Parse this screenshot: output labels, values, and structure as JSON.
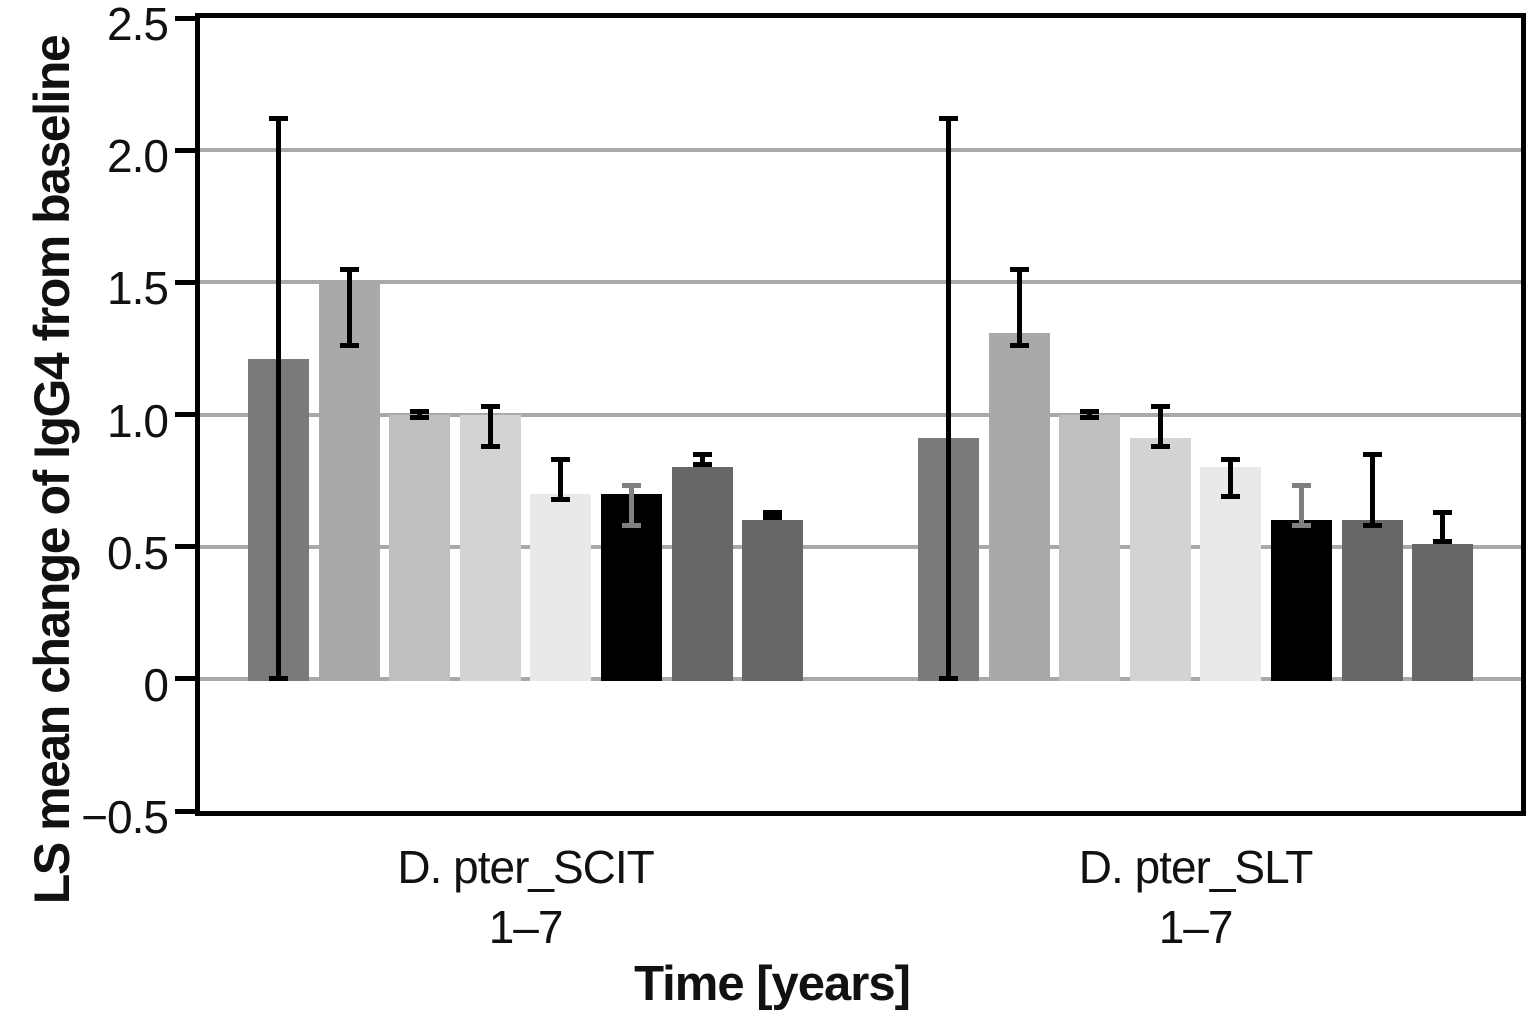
{
  "figure": {
    "y_axis_label": "LS mean change of IgG4 from baseline",
    "x_axis_label": "Time [years]"
  },
  "chart_data": {
    "type": "bar",
    "title": "",
    "xlabel": "Time [years]",
    "ylabel": "LS mean change of IgG4 from baseline",
    "ylim": [
      -0.5,
      2.5
    ],
    "y_ticks": [
      {
        "value": 2.5,
        "label": "2.5"
      },
      {
        "value": 2.0,
        "label": "2.0"
      },
      {
        "value": 1.5,
        "label": "1.5"
      },
      {
        "value": 1.0,
        "label": "1.0"
      },
      {
        "value": 0.5,
        "label": "0.5"
      },
      {
        "value": 0.0,
        "label": "0"
      },
      {
        "value": -0.5,
        "label": "−0.5"
      }
    ],
    "gridlines_at": [
      2.0,
      1.5,
      1.0,
      0.5,
      0.0
    ],
    "grid_color": "#a9a9a9",
    "legend": "none",
    "bars_per_group": 8,
    "bar_colors": [
      "#7a7a7a",
      "#a9a9a9",
      "#bfbfbf",
      "#d3d3d3",
      "#e9e9e9",
      "#000000",
      "#676767",
      "#676767"
    ],
    "error_bar_colors": [
      "#000000",
      "#000000",
      "#000000",
      "#000000",
      "#000000",
      "#808080",
      "#000000",
      "#000000"
    ],
    "groups": [
      {
        "label": "D. pter_SCIT",
        "sublabel": "1–7",
        "bars": [
          {
            "value": 1.21,
            "err_low": 0.0,
            "err_high": 2.12
          },
          {
            "value": 1.5,
            "err_low": 1.26,
            "err_high": 1.55
          },
          {
            "value": 1.0,
            "err_low": 0.99,
            "err_high": 1.01
          },
          {
            "value": 1.0,
            "err_low": 0.88,
            "err_high": 1.03
          },
          {
            "value": 0.7,
            "err_low": 0.68,
            "err_high": 0.83
          },
          {
            "value": 0.7,
            "err_low": 0.58,
            "err_high": 0.73
          },
          {
            "value": 0.8,
            "err_low": 0.81,
            "err_high": 0.85
          },
          {
            "value": 0.6,
            "err_low": 0.61,
            "err_high": 0.63
          }
        ]
      },
      {
        "label": "D. pter_SLT",
        "sublabel": "1–7",
        "bars": [
          {
            "value": 0.91,
            "err_low": 0.0,
            "err_high": 2.12
          },
          {
            "value": 1.31,
            "err_low": 1.26,
            "err_high": 1.55
          },
          {
            "value": 1.0,
            "err_low": 0.99,
            "err_high": 1.01
          },
          {
            "value": 0.91,
            "err_low": 0.88,
            "err_high": 1.03
          },
          {
            "value": 0.8,
            "err_low": 0.69,
            "err_high": 0.83
          },
          {
            "value": 0.6,
            "err_low": 0.58,
            "err_high": 0.73
          },
          {
            "value": 0.6,
            "err_low": 0.58,
            "err_high": 0.85
          },
          {
            "value": 0.51,
            "err_low": 0.52,
            "err_high": 0.63
          }
        ]
      }
    ]
  }
}
